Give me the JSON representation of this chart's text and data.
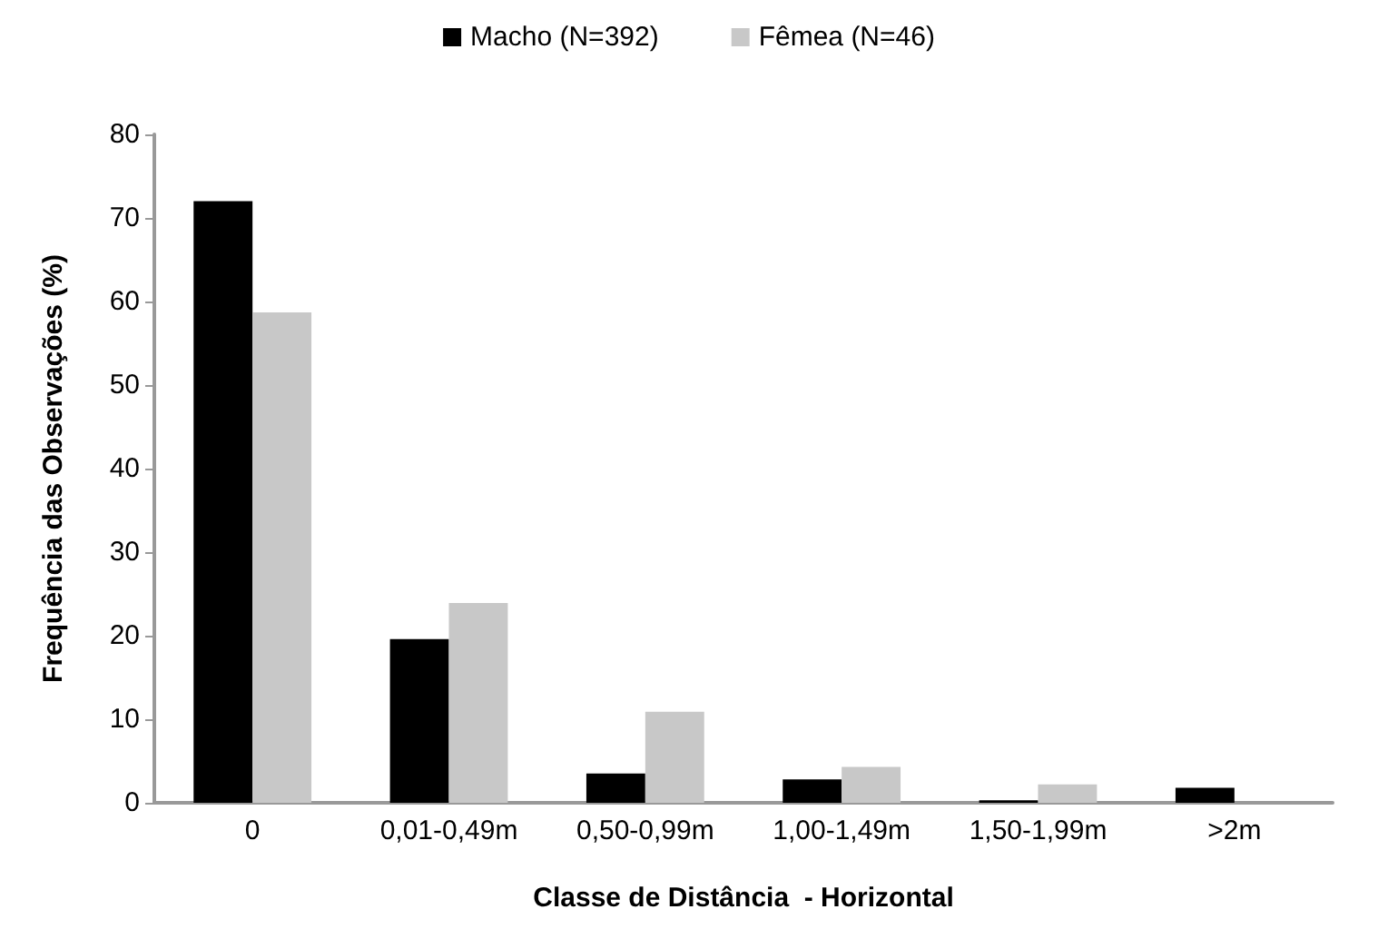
{
  "chart_data": {
    "type": "bar",
    "xlabel": "Classe de Distância  - Horizontal",
    "ylabel": "Frequência das Observações (%)",
    "categories": [
      "0",
      "0,01-0,49m",
      "0,50-0,99m",
      "1,00-1,49m",
      "1,50-1,99m",
      ">2m"
    ],
    "series": [
      {
        "name": "Macho (N=392)",
        "color": "#000000",
        "values": [
          72,
          19.6,
          3.5,
          2.8,
          0.3,
          1.8
        ]
      },
      {
        "name": "Fêmea (N=46)",
        "color": "#c8c8c8",
        "values": [
          58.7,
          23.9,
          10.9,
          4.3,
          2.2,
          0
        ]
      }
    ],
    "ylim": [
      0,
      80
    ],
    "yticks": [
      0,
      10,
      20,
      30,
      40,
      50,
      60,
      70,
      80
    ],
    "grid": false,
    "legend": "top"
  }
}
